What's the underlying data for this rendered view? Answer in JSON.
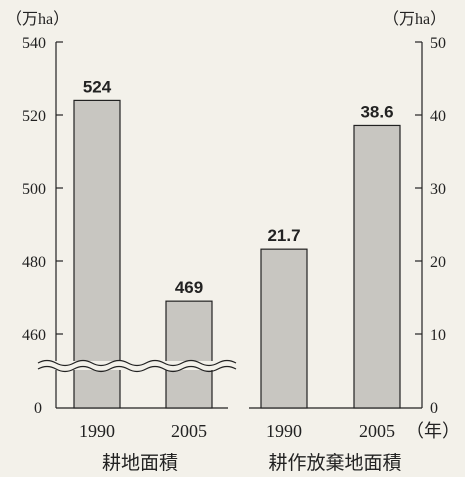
{
  "chart_data": [
    {
      "type": "bar",
      "group_label": "耕地面積",
      "unit_label": "（万ha）",
      "categories": [
        "1990",
        "2005"
      ],
      "values": [
        524,
        469
      ],
      "value_labels": [
        "524",
        "469"
      ],
      "ylim": [
        440,
        540
      ],
      "y_ticks": [
        "540",
        "520",
        "500",
        "480",
        "460",
        "0"
      ],
      "axis_break": true
    },
    {
      "type": "bar",
      "group_label": "耕作放棄地面積",
      "unit_label": "（万ha）",
      "categories": [
        "1990",
        "2005"
      ],
      "values": [
        21.7,
        38.6
      ],
      "value_labels": [
        "21.7",
        "38.6"
      ],
      "ylim": [
        0,
        50
      ],
      "y_ticks": [
        "50",
        "40",
        "30",
        "20",
        "10",
        "0"
      ]
    }
  ],
  "x_unit_label": "（年）",
  "colors": {
    "bar_fill": "#c8c6c1",
    "bar_stroke": "#222222",
    "background": "#f3f1ea"
  }
}
